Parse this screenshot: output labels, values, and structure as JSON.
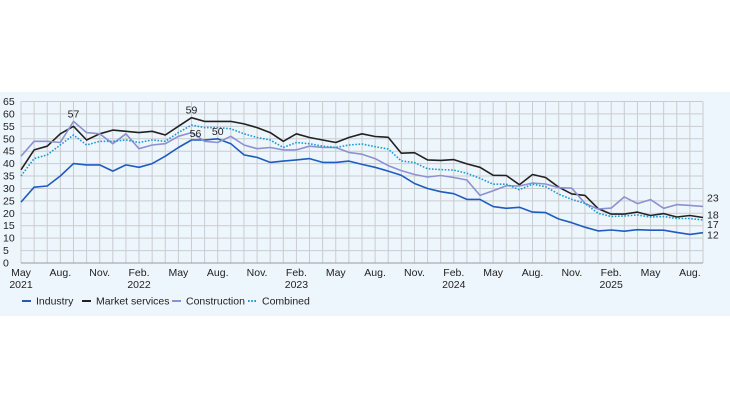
{
  "chart_data": {
    "type": "line",
    "title": "",
    "xlabel": "",
    "ylabel": "",
    "ylim": [
      0,
      65
    ],
    "yticks": [
      0,
      5,
      10,
      15,
      20,
      25,
      30,
      35,
      40,
      45,
      50,
      55,
      60,
      65
    ],
    "grid": true,
    "legend_position": "bottom-left",
    "x_start": "May 2021",
    "x_end": "Sep 2025",
    "x_tick_labels": [
      {
        "index": 0,
        "month": "May",
        "year": "2021"
      },
      {
        "index": 3,
        "month": "Aug.",
        "year": ""
      },
      {
        "index": 6,
        "month": "Nov.",
        "year": ""
      },
      {
        "index": 9,
        "month": "Feb.",
        "year": "2022"
      },
      {
        "index": 12,
        "month": "May",
        "year": ""
      },
      {
        "index": 15,
        "month": "Aug.",
        "year": ""
      },
      {
        "index": 18,
        "month": "Nov.",
        "year": ""
      },
      {
        "index": 21,
        "month": "Feb.",
        "year": "2023"
      },
      {
        "index": 24,
        "month": "May",
        "year": ""
      },
      {
        "index": 27,
        "month": "Aug.",
        "year": ""
      },
      {
        "index": 30,
        "month": "Nov.",
        "year": ""
      },
      {
        "index": 33,
        "month": "Feb.",
        "year": "2024"
      },
      {
        "index": 36,
        "month": "May",
        "year": ""
      },
      {
        "index": 39,
        "month": "Aug.",
        "year": ""
      },
      {
        "index": 42,
        "month": "Nov.",
        "year": ""
      },
      {
        "index": 45,
        "month": "Feb.",
        "year": "2025"
      },
      {
        "index": 48,
        "month": "May",
        "year": ""
      },
      {
        "index": 51,
        "month": "Aug.",
        "year": ""
      }
    ],
    "series": [
      {
        "name": "Industry",
        "color": "#1f5cbf",
        "dash": false,
        "values": [
          24.5,
          30.5,
          31,
          35,
          40,
          39.5,
          39.5,
          37,
          39.5,
          38.5,
          40,
          43,
          46.5,
          49.5,
          49.5,
          50,
          48,
          43.5,
          42.5,
          40.5,
          41,
          41.5,
          42,
          40.5,
          40.5,
          41,
          39.7,
          38.5,
          37,
          35.3,
          32,
          30,
          28.7,
          27.9,
          25.6,
          25.6,
          22.7,
          22,
          22.4,
          20.5,
          20.3,
          17.7,
          16.2,
          14.4,
          12.9,
          13.3,
          12.8,
          13.4,
          13.2,
          13.2,
          12.3,
          11.5,
          12.2
        ]
      },
      {
        "name": "Market services",
        "color": "#222222",
        "dash": false,
        "values": [
          37.5,
          45.5,
          47,
          52,
          55,
          49.5,
          52,
          53.5,
          53,
          52.5,
          53,
          51.5,
          55,
          58.5,
          57,
          57,
          57,
          56,
          54.5,
          52.5,
          49,
          52,
          50.5,
          49.5,
          48.5,
          50.5,
          52,
          50.9,
          50.6,
          44.2,
          44.4,
          41.5,
          41.3,
          41.6,
          39.9,
          38.5,
          35.3,
          35.2,
          31.5,
          35.6,
          34.4,
          30.5,
          27.8,
          27.2,
          21.9,
          19.7,
          19.7,
          20.5,
          19.1,
          19.9,
          18.5,
          19.1,
          18.3
        ]
      },
      {
        "name": "Construction",
        "color": "#8d90d2",
        "dash": false,
        "values": [
          43,
          49,
          49,
          48.5,
          57,
          52.5,
          52,
          48,
          52,
          46,
          47.5,
          48,
          51,
          52.5,
          49,
          48.5,
          51,
          47.5,
          46,
          46.5,
          45.5,
          45.5,
          47,
          46.5,
          46.5,
          44.5,
          43.8,
          42,
          39.2,
          37.2,
          35.6,
          34.6,
          35.2,
          34.4,
          33.4,
          27.2,
          29.1,
          31.1,
          31,
          32.2,
          31.8,
          30.3,
          30.1,
          24,
          21.7,
          22.1,
          26.6,
          23.9,
          25.5,
          22,
          23.5,
          23.2,
          22.8
        ]
      },
      {
        "name": "Combined",
        "color": "#1a9ad8",
        "dash": true,
        "values": [
          35,
          42,
          43.5,
          47.5,
          51.5,
          47.5,
          49,
          49,
          49.5,
          48.5,
          49.5,
          49,
          52.5,
          55.5,
          54.5,
          54.5,
          54,
          52,
          50.5,
          49.5,
          46.5,
          48.5,
          48,
          47,
          46.5,
          47.5,
          47.9,
          46.8,
          45.9,
          41.1,
          40.4,
          37.9,
          37.6,
          37.4,
          36.1,
          34.1,
          31.7,
          31.7,
          29.5,
          31.7,
          30.7,
          27.7,
          25.6,
          24,
          20,
          18.7,
          18.9,
          19.3,
          18.5,
          18.7,
          17.9,
          17.9,
          17.3
        ]
      }
    ],
    "annotations": [
      {
        "text": "57",
        "series": "Construction",
        "index": 4
      },
      {
        "text": "59",
        "series": "Market services",
        "index": 13
      },
      {
        "text": "56",
        "series": "Combined",
        "index": 13
      },
      {
        "text": "50",
        "series": "Industry",
        "index": 15
      },
      {
        "text": "23",
        "series": "Construction",
        "index": 52
      },
      {
        "text": "18",
        "series": "Market services",
        "index": 52
      },
      {
        "text": "17",
        "series": "Combined",
        "index": 52
      },
      {
        "text": "12",
        "series": "Industry",
        "index": 52
      }
    ]
  }
}
